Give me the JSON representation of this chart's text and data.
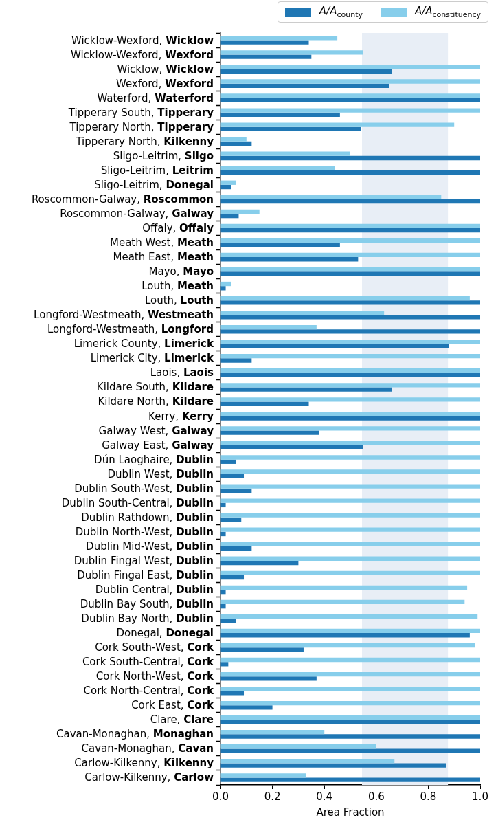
{
  "chart_data": {
    "type": "bar",
    "orientation": "horizontal",
    "xlabel": "Area Fraction",
    "categories": [
      "Wicklow-Wexford, Wicklow",
      "Wicklow-Wexford, Wexford",
      "Wicklow, Wicklow",
      "Wexford, Wexford",
      "Waterford, Waterford",
      "Tipperary South, Tipperary",
      "Tipperary North, Tipperary",
      "Tipperary North, Kilkenny",
      "Sligo-Leitrim, Sligo",
      "Sligo-Leitrim, Leitrim",
      "Sligo-Leitrim, Donegal",
      "Roscommon-Galway, Roscommon",
      "Roscommon-Galway, Galway",
      "Offaly, Offaly",
      "Meath West, Meath",
      "Meath East, Meath",
      "Mayo, Mayo",
      "Louth, Meath",
      "Louth, Louth",
      "Longford-Westmeath, Westmeath",
      "Longford-Westmeath, Longford",
      "Limerick County, Limerick",
      "Limerick City, Limerick",
      "Laois, Laois",
      "Kildare South, Kildare",
      "Kildare North, Kildare",
      "Kerry, Kerry",
      "Galway West, Galway",
      "Galway East, Galway",
      "Dún Laoghaire, Dublin",
      "Dublin West, Dublin",
      "Dublin South-West, Dublin",
      "Dublin South-Central, Dublin",
      "Dublin Rathdown, Dublin",
      "Dublin North-West, Dublin",
      "Dublin Mid-West, Dublin",
      "Dublin Fingal West, Dublin",
      "Dublin Fingal East, Dublin",
      "Dublin Central, Dublin",
      "Dublin Bay South, Dublin",
      "Dublin Bay North, Dublin",
      "Donegal, Donegal",
      "Cork South-West, Cork",
      "Cork South-Central, Cork",
      "Cork North-West, Cork",
      "Cork North-Central, Cork",
      "Cork East, Cork",
      "Clare, Clare",
      "Cavan-Monaghan, Monaghan",
      "Cavan-Monaghan, Cavan",
      "Carlow-Kilkenny, Kilkenny",
      "Carlow-Kilkenny, Carlow"
    ],
    "series": [
      {
        "name": "A/A$_{county}$",
        "color": "#1f77b4",
        "values": [
          0.34,
          0.35,
          0.66,
          0.65,
          1,
          0.46,
          0.54,
          0.12,
          1,
          1,
          0.04,
          1,
          0.07,
          1,
          0.46,
          0.53,
          1,
          0.02,
          1,
          1,
          1,
          0.88,
          0.12,
          1,
          0.66,
          0.34,
          1,
          0.38,
          0.55,
          0.06,
          0.09,
          0.12,
          0.02,
          0.08,
          0.02,
          0.12,
          0.3,
          0.09,
          0.02,
          0.02,
          0.06,
          0.96,
          0.32,
          0.03,
          0.37,
          0.09,
          0.2,
          1,
          1,
          1,
          0.87,
          1
        ]
      },
      {
        "name": "A/A$_{constituency}$",
        "color": "#87ceeb",
        "values": [
          0.45,
          0.55,
          1,
          1,
          1,
          1,
          0.9,
          0.1,
          0.5,
          0.44,
          0.06,
          0.85,
          0.15,
          1,
          1,
          1,
          1,
          0.04,
          0.96,
          0.63,
          0.37,
          1,
          1,
          1,
          1,
          1,
          1,
          1,
          1,
          1,
          1,
          1,
          1,
          1,
          1,
          1,
          1,
          1,
          0.95,
          0.94,
          0.99,
          1,
          0.98,
          1,
          1,
          1,
          1,
          1,
          0.4,
          0.6,
          0.67,
          0.33
        ]
      }
    ],
    "xlim": [
      0,
      1
    ],
    "xticks": [
      {
        "value": 0,
        "label": "0.0"
      },
      {
        "value": 0.2,
        "label": "0.2"
      },
      {
        "value": 0.4,
        "label": "0.4"
      },
      {
        "value": 0.6,
        "label": "0.6"
      },
      {
        "value": 0.8,
        "label": "0.8"
      },
      {
        "value": 1,
        "label": "1.0"
      }
    ],
    "bands": [
      {
        "axis": "x",
        "from": 0.545,
        "to": 0.876,
        "color": "#e8eef6"
      }
    ],
    "grid": false,
    "legend": "top right"
  }
}
